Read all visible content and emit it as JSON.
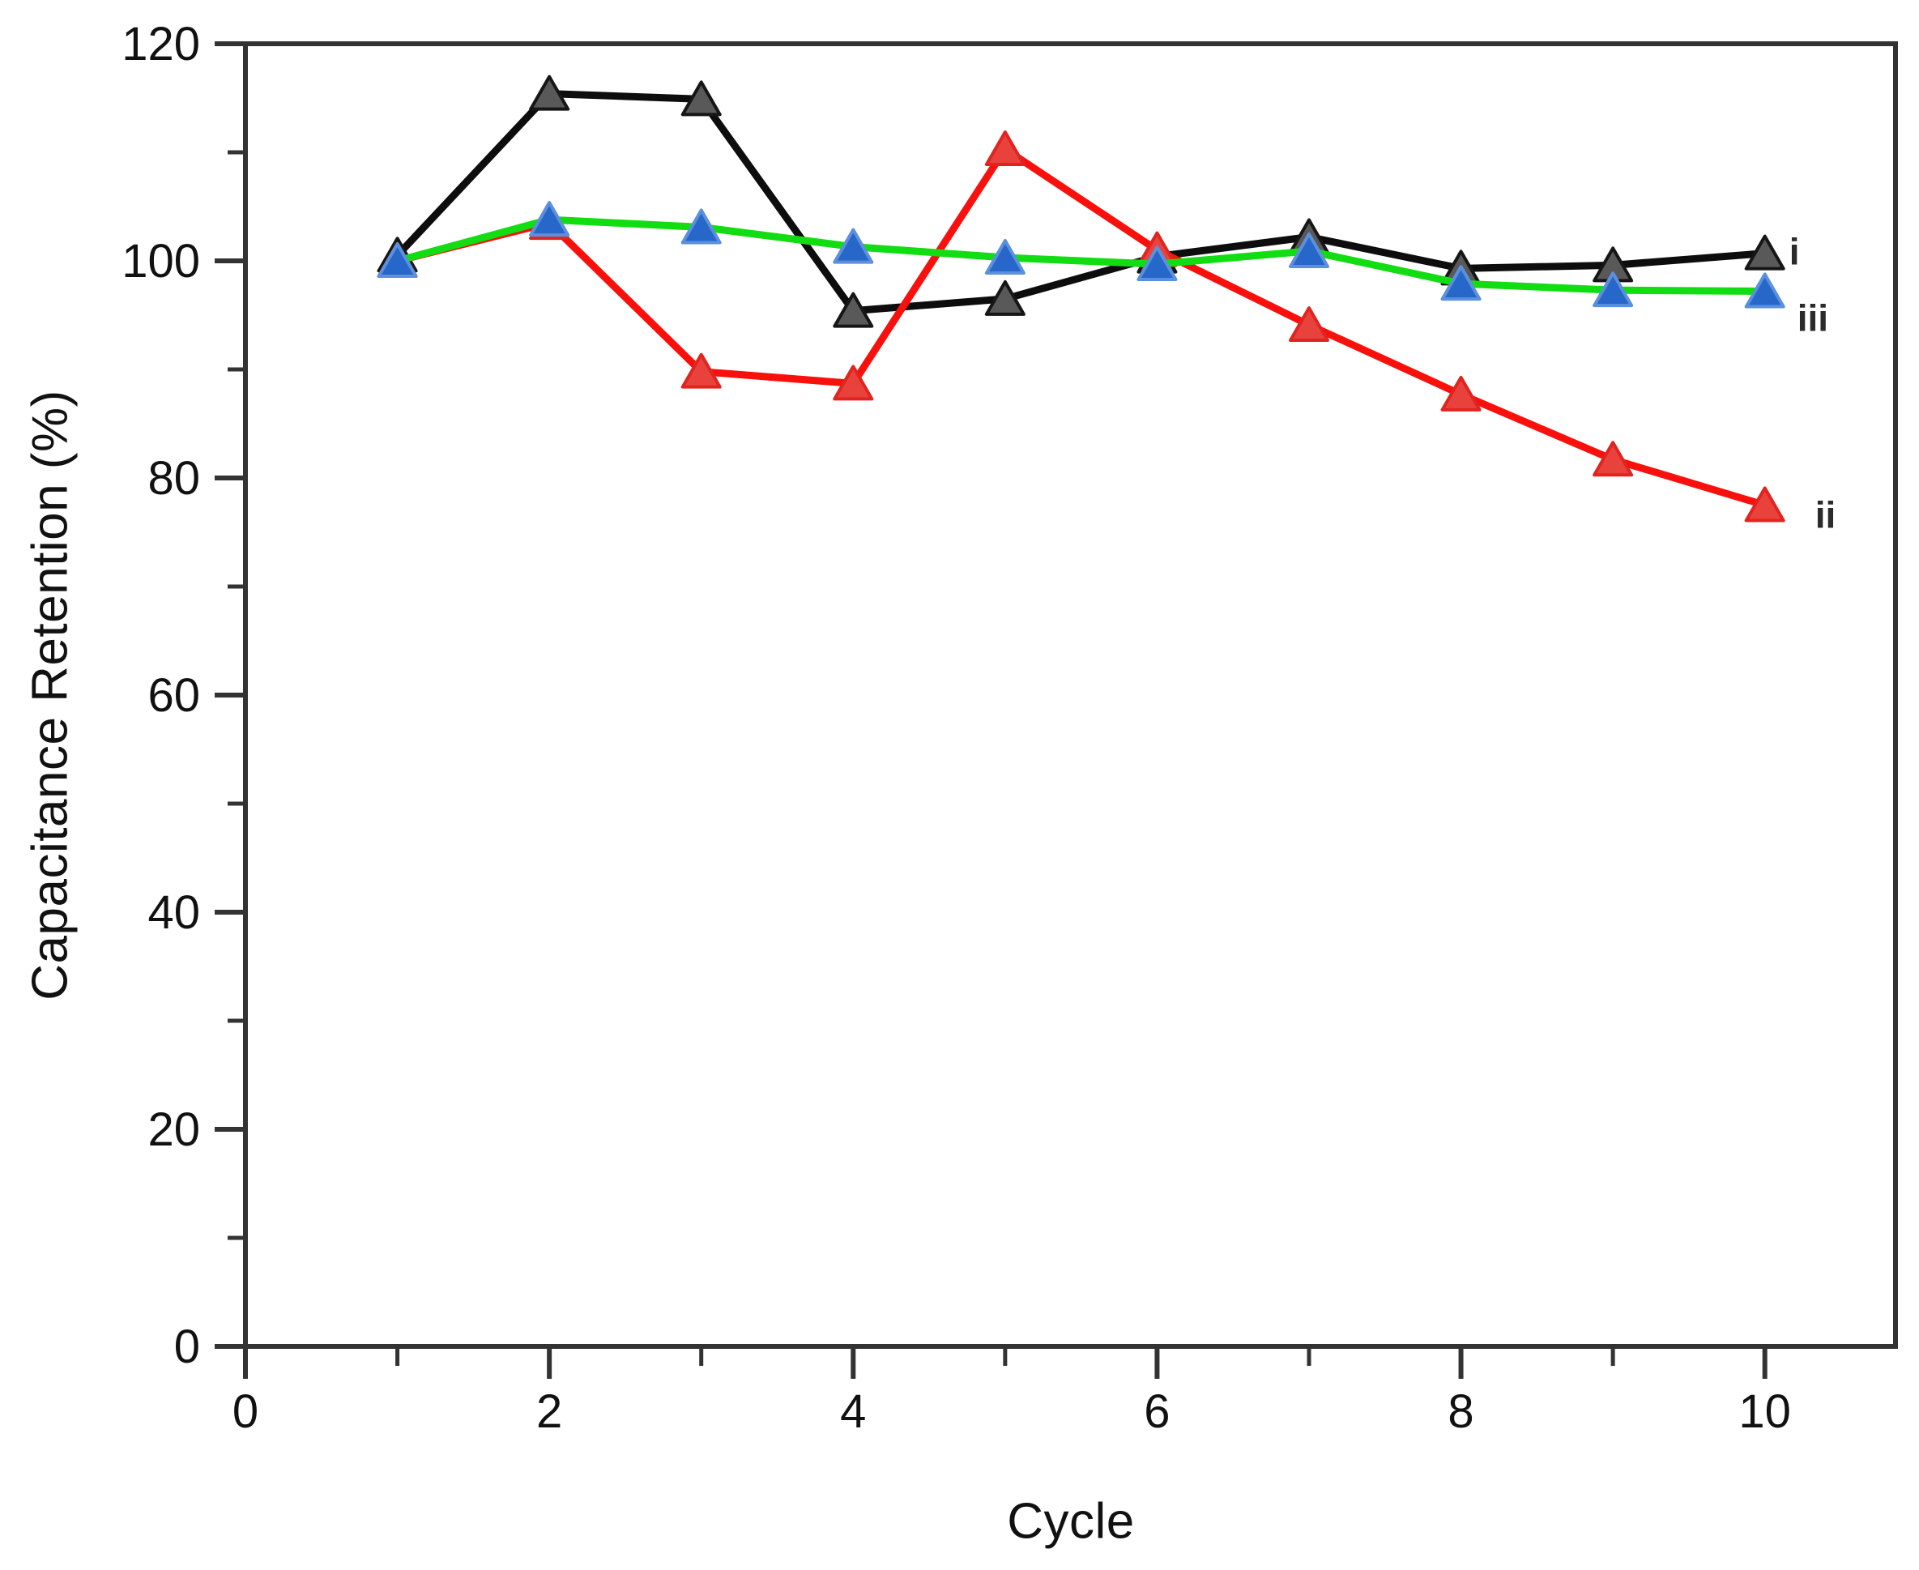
{
  "figure": {
    "background": "#ffffff",
    "frame_color": "#333333",
    "tick_color": "#333333",
    "text_color": "#111111",
    "series_label_color": "#2b2b2b"
  },
  "chart_data": {
    "type": "line",
    "title": "",
    "xlabel": "Cycle",
    "ylabel": "Capacitance Retention (%)",
    "xlim": [
      0,
      10.86
    ],
    "ylim": [
      0,
      120
    ],
    "grid": false,
    "legend_position": "right-of-last-points",
    "x_major_ticks": [
      0,
      2,
      4,
      6,
      8,
      10
    ],
    "x_minor_ticks": [
      1,
      3,
      5,
      7,
      9
    ],
    "y_major_ticks": [
      0,
      20,
      40,
      60,
      80,
      100,
      120
    ],
    "y_minor_ticks": [
      10,
      30,
      50,
      70,
      90,
      110
    ],
    "x": [
      1,
      2,
      3,
      4,
      5,
      6,
      7,
      8,
      9,
      10
    ],
    "series": [
      {
        "name": "i",
        "label": "i",
        "marker": "triangle-up",
        "line_color": "#0d0d0d",
        "marker_fill": "#595959",
        "marker_stroke": "#161616",
        "values": [
          100.5,
          115.4,
          114.9,
          95.4,
          96.5,
          100.4,
          102.2,
          99.3,
          99.6,
          100.7
        ]
      },
      {
        "name": "ii",
        "label": "ii",
        "marker": "triangle-up",
        "line_color": "#f8100c",
        "marker_fill": "#e9423d",
        "marker_stroke": "#e02520",
        "values": [
          100.0,
          103.5,
          89.8,
          88.7,
          110.3,
          101.0,
          94.1,
          87.7,
          81.7,
          77.5
        ]
      },
      {
        "name": "iii",
        "label": "iii",
        "marker": "triangle-up",
        "line_color": "#12dd12",
        "marker_fill": "#2767c9",
        "marker_stroke": "#5c90dd",
        "values": [
          100.0,
          103.8,
          103.1,
          101.3,
          100.3,
          99.7,
          100.9,
          97.9,
          97.3,
          97.2
        ]
      }
    ]
  }
}
